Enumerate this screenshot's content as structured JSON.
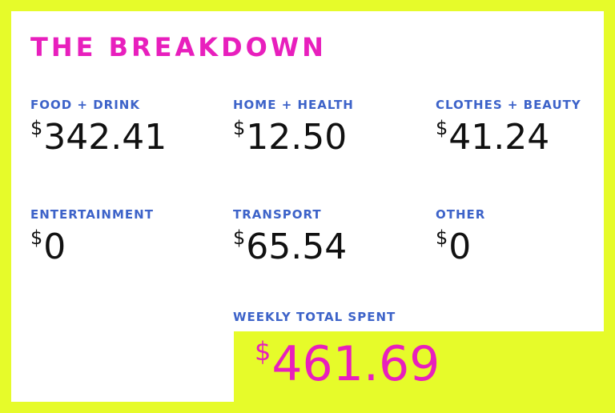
{
  "title": "THE BREAKDOWN",
  "currency_symbol": "$",
  "categories": [
    {
      "label": "FOOD + DRINK",
      "amount": "342.41"
    },
    {
      "label": "HOME + HEALTH",
      "amount": "12.50"
    },
    {
      "label": "CLOTHES + BEAUTY",
      "amount": "41.24"
    },
    {
      "label": "ENTERTAINMENT",
      "amount": "0"
    },
    {
      "label": "TRANSPORT",
      "amount": "65.54"
    },
    {
      "label": "OTHER",
      "amount": "0"
    }
  ],
  "total": {
    "label": "WEEKLY TOTAL SPENT",
    "amount": "461.69"
  },
  "colors": {
    "background": "#e6fb2a",
    "title": "#e81fbd",
    "label": "#3d63c9",
    "value": "#111111",
    "total": "#e81fbd"
  }
}
